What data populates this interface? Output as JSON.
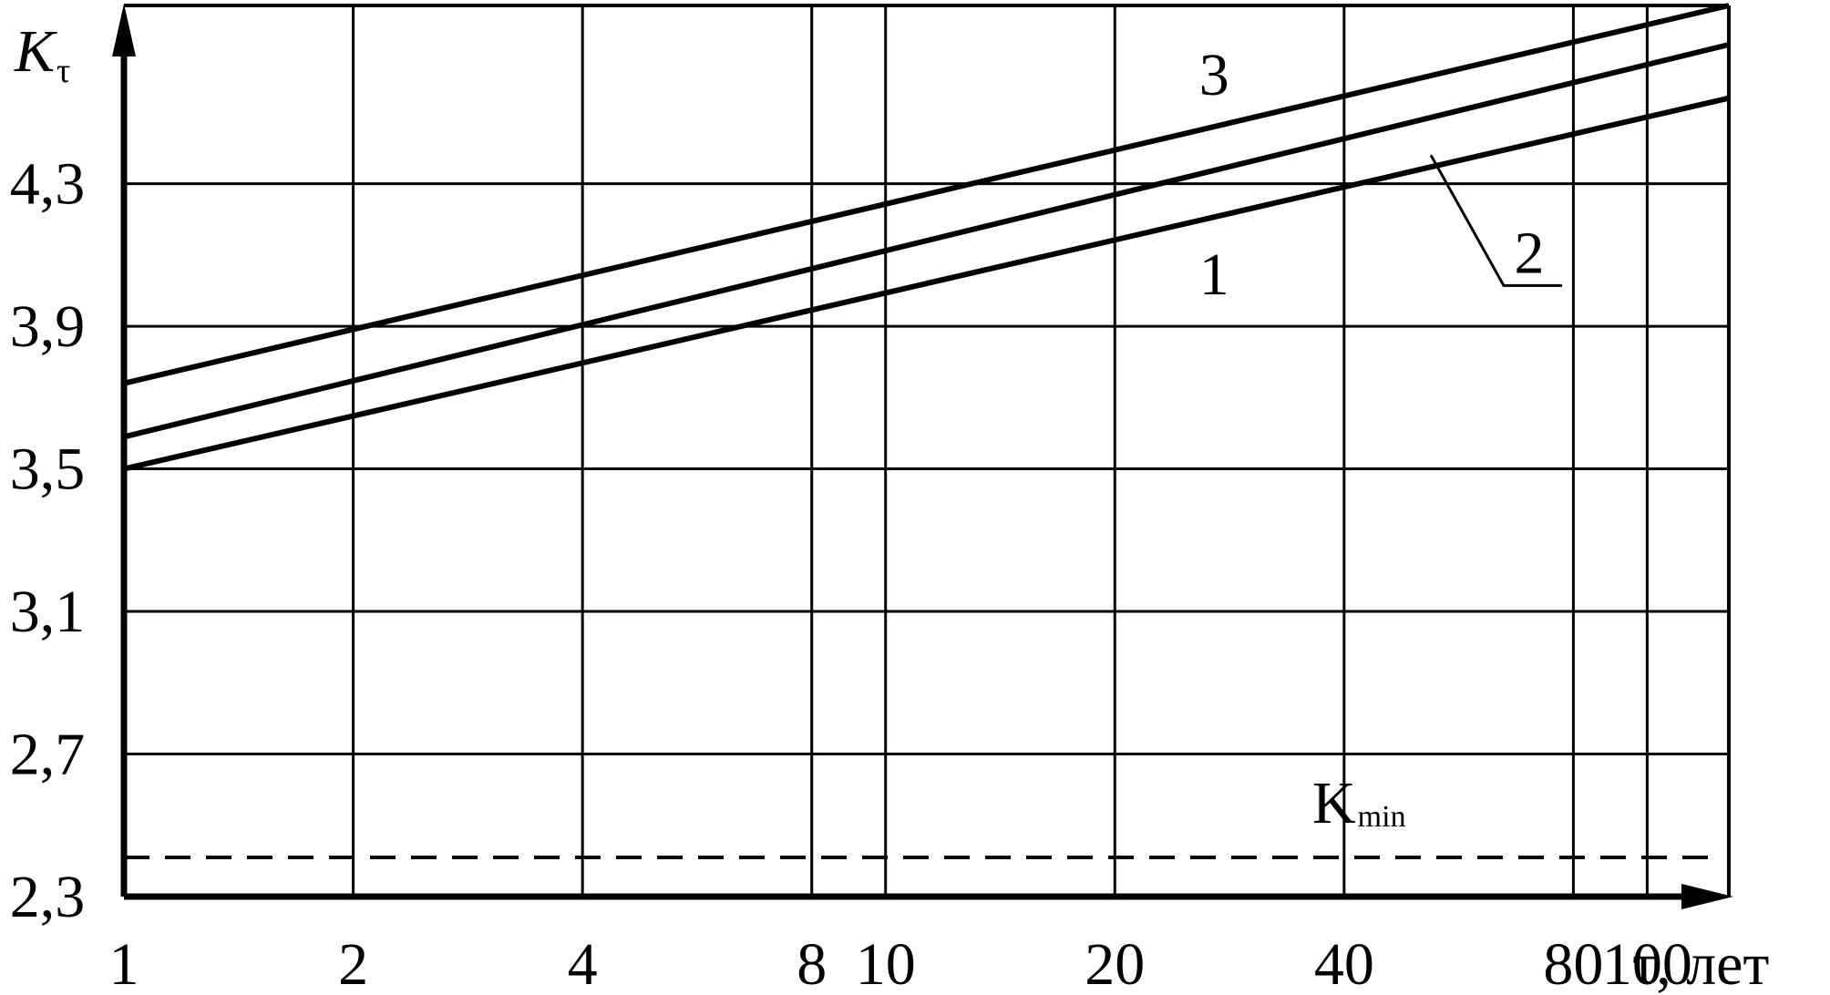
{
  "chart_data": {
    "type": "line",
    "x_scale": "log",
    "y_scale": "linear",
    "xlim": [
      1,
      128
    ],
    "ylim": [
      2.3,
      4.8
    ],
    "grid": true,
    "ylabel": "K",
    "ylabel_sub": "τ",
    "xlabel": "τ, лет",
    "x_gridlines": [
      1,
      2,
      4,
      8,
      10,
      20,
      40,
      80,
      100,
      128
    ],
    "y_gridlines": [
      2.3,
      2.7,
      3.1,
      3.5,
      3.9,
      4.3,
      4.8
    ],
    "x_ticks": [
      {
        "value": 1,
        "label": "1"
      },
      {
        "value": 2,
        "label": "2"
      },
      {
        "value": 4,
        "label": "4"
      },
      {
        "value": 8,
        "label": "8"
      },
      {
        "value": 10,
        "label": "10"
      },
      {
        "value": 20,
        "label": "20"
      },
      {
        "value": 40,
        "label": "40"
      },
      {
        "value": 80,
        "label": "80"
      },
      {
        "value": 100,
        "label": "100"
      }
    ],
    "y_ticks": [
      {
        "value": 2.3,
        "label": "2,3"
      },
      {
        "value": 2.7,
        "label": "2,7"
      },
      {
        "value": 3.1,
        "label": "3,1"
      },
      {
        "value": 3.5,
        "label": "3,5"
      },
      {
        "value": 3.9,
        "label": "3,9"
      },
      {
        "value": 4.3,
        "label": "4,3"
      }
    ],
    "series": [
      {
        "name": "1",
        "x": [
          1,
          128
        ],
        "y": [
          3.5,
          4.54
        ]
      },
      {
        "name": "2",
        "x": [
          1,
          128
        ],
        "y": [
          3.59,
          4.69
        ]
      },
      {
        "name": "3",
        "x": [
          1,
          128
        ],
        "y": [
          3.74,
          4.8
        ]
      }
    ],
    "reference_line": {
      "name": "K",
      "name_sub": "min",
      "y": 2.41,
      "style": "dashed"
    },
    "series_label_positions": [
      {
        "label": "3",
        "x": 27,
        "y": 4.55
      },
      {
        "label": "1",
        "x": 27,
        "y": 3.99
      },
      {
        "label": "2",
        "x": 70,
        "y": 4.05,
        "leader_from": {
          "x": 52,
          "y": 4.38
        }
      }
    ]
  }
}
